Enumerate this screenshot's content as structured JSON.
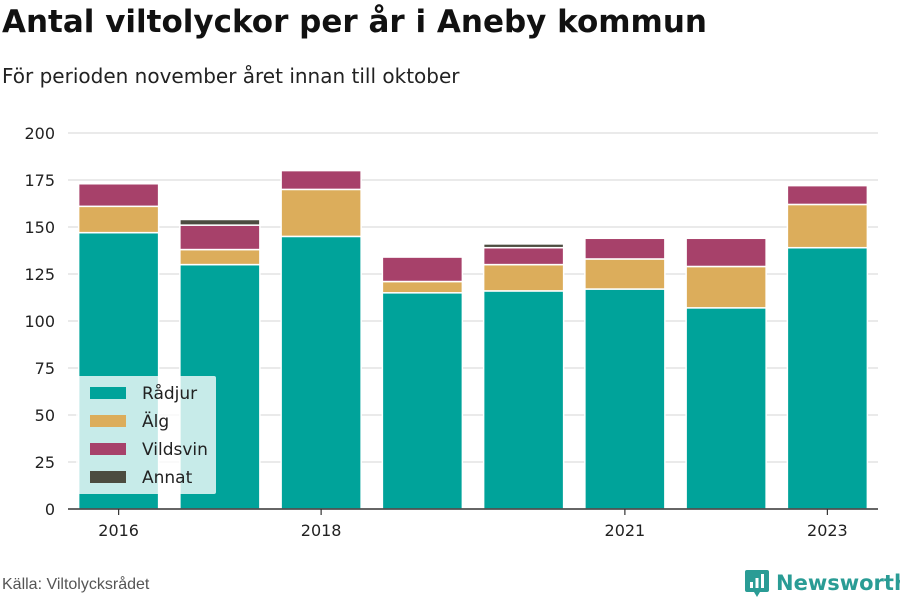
{
  "title": "Antal viltolyckor per år i Aneby kommun",
  "subtitle": "För perioden november året innan till oktober",
  "source": "Källa: Viltolycksrådet",
  "brand": "Newsworthy",
  "chart_data": {
    "type": "bar",
    "stacked": true,
    "categories": [
      "2016",
      "2017",
      "2018",
      "2019",
      "2020",
      "2021",
      "2022",
      "2023"
    ],
    "x_tick_labels": [
      "2016",
      "",
      "2018",
      "",
      "",
      "2021",
      "",
      "2023"
    ],
    "y_ticks": [
      "0",
      "25",
      "50",
      "75",
      "100",
      "125",
      "150",
      "175",
      "200"
    ],
    "ylim": [
      0,
      200
    ],
    "grid": true,
    "legend_position": "bottom-left",
    "series": [
      {
        "name": "Rådjur",
        "color": "#00a39a",
        "values": [
          147,
          130,
          145,
          115,
          116,
          117,
          107,
          139
        ]
      },
      {
        "name": "Älg",
        "color": "#dcad5b",
        "values": [
          14,
          8,
          25,
          6,
          14,
          16,
          22,
          23
        ]
      },
      {
        "name": "Vildsvin",
        "color": "#a7416a",
        "values": [
          12,
          13,
          10,
          13,
          9,
          11,
          15,
          10
        ]
      },
      {
        "name": "Annat",
        "color": "#4c4c40",
        "values": [
          0,
          3,
          0,
          0,
          2,
          0,
          0,
          0
        ]
      }
    ]
  }
}
